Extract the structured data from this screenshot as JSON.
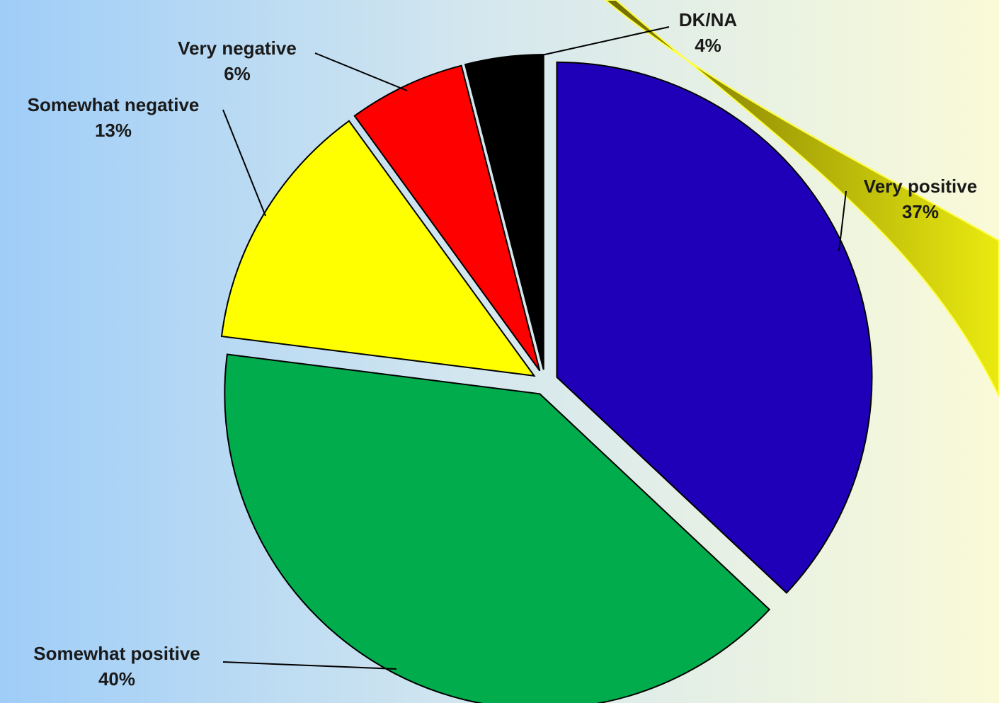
{
  "chart_data": {
    "type": "pie",
    "categories": [
      "Very positive",
      "Somewhat positive",
      "Somewhat negative",
      "Very negative",
      "DK/NA"
    ],
    "values": [
      37,
      40,
      13,
      6,
      4
    ],
    "value_labels": [
      "37%",
      "40%",
      "13%",
      "6%",
      "4%"
    ],
    "colors": [
      "#1f00b8",
      "#00ac4c",
      "#ffff00",
      "#ff0000",
      "#000000"
    ]
  }
}
